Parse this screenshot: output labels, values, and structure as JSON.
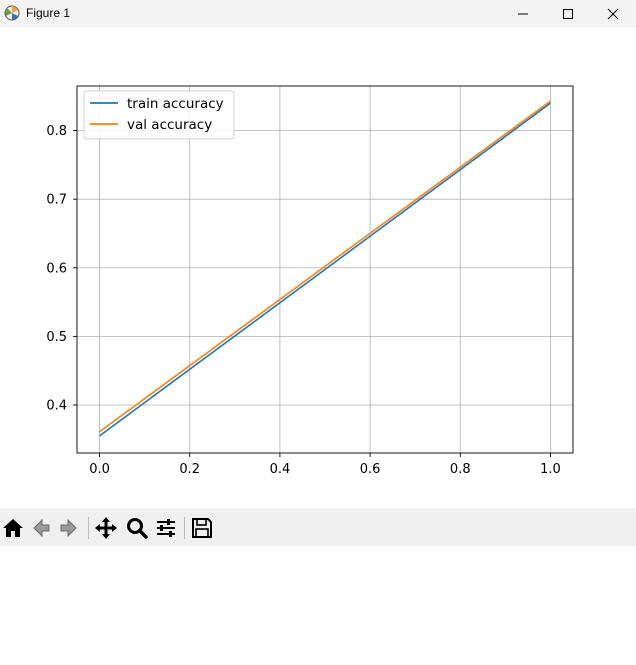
{
  "window": {
    "title": "Figure 1",
    "controls": [
      "minimize-icon",
      "maximize-icon",
      "close-icon"
    ]
  },
  "toolbar": {
    "buttons": [
      "home-icon",
      "back-icon",
      "forward-icon",
      "pan-icon",
      "zoom-icon",
      "configure-subplots-icon",
      "save-icon"
    ]
  },
  "chart_data": {
    "type": "line",
    "title": "",
    "xlabel": "",
    "ylabel": "",
    "xlim": [
      -0.05,
      1.05
    ],
    "ylim": [
      0.33,
      0.865
    ],
    "xticks": [
      0.0,
      0.2,
      0.4,
      0.6,
      0.8,
      1.0
    ],
    "xtick_labels": [
      "0.0",
      "0.2",
      "0.4",
      "0.6",
      "0.8",
      "1.0"
    ],
    "yticks": [
      0.4,
      0.5,
      0.6,
      0.7,
      0.8
    ],
    "ytick_labels": [
      "0.4",
      "0.5",
      "0.6",
      "0.7",
      "0.8"
    ],
    "grid": true,
    "legend_position": "upper-left",
    "series": [
      {
        "name": "train accuracy",
        "color": "#1f77b4",
        "x": [
          0,
          1
        ],
        "y": [
          0.355,
          0.84
        ]
      },
      {
        "name": "val accuracy",
        "color": "#ff7f0e",
        "x": [
          0,
          1
        ],
        "y": [
          0.361,
          0.843
        ]
      }
    ]
  }
}
